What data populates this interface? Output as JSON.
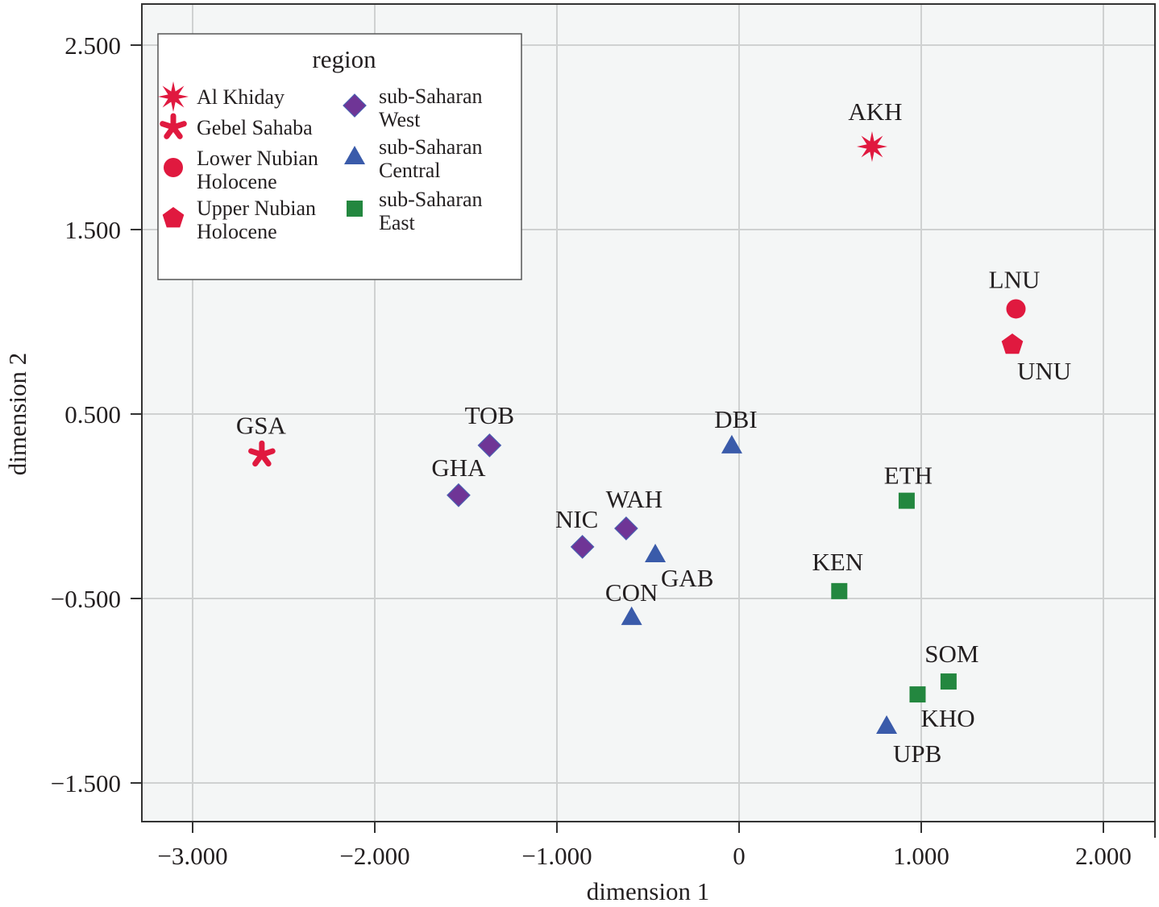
{
  "chart_data": {
    "type": "scatter",
    "title": "",
    "xlabel": "dimension 1",
    "ylabel": "dimension 2",
    "xlim": [
      -3.28,
      2.27
    ],
    "ylim": [
      -1.72,
      2.72
    ],
    "xticks": [
      -3,
      -2,
      -1,
      0,
      1,
      2
    ],
    "xtick_labels": [
      "−3.000",
      "−2.000",
      "−1.000",
      "0",
      "1.000",
      "2.000"
    ],
    "yticks": [
      -1.5,
      -0.5,
      0.5,
      1.5,
      2.5
    ],
    "ytick_labels": [
      "−1.500",
      "−0.500",
      "0.500",
      "1.500",
      "2.500"
    ],
    "grid": true,
    "legend": {
      "title": "region",
      "placement": "top-left",
      "entries": [
        {
          "key": "al_khiday",
          "lines": [
            "Al Khiday"
          ],
          "marker": "star8",
          "color": "#e0193f"
        },
        {
          "key": "gebel_sahaba",
          "lines": [
            "Gebel Sahaba"
          ],
          "marker": "asterisk",
          "color": "#e0193f"
        },
        {
          "key": "lower_nubian",
          "lines": [
            "Lower Nubian",
            "Holocene"
          ],
          "marker": "circle",
          "color": "#e0193f"
        },
        {
          "key": "upper_nubian",
          "lines": [
            "Upper Nubian",
            "Holocene"
          ],
          "marker": "pentagon",
          "color": "#e0193f"
        },
        {
          "key": "ss_west",
          "lines": [
            "sub-Saharan",
            "West"
          ],
          "marker": "diamond",
          "color": "#6f3596"
        },
        {
          "key": "ss_central",
          "lines": [
            "sub-Saharan",
            "Central"
          ],
          "marker": "triangle",
          "color": "#3a5baa"
        },
        {
          "key": "ss_east",
          "lines": [
            "sub-Saharan",
            "East"
          ],
          "marker": "square",
          "color": "#23873f"
        }
      ]
    },
    "points": [
      {
        "label": "AKH",
        "region": "al_khiday",
        "x": 0.73,
        "y": 1.95,
        "label_pos": "above"
      },
      {
        "label": "GSA",
        "region": "gebel_sahaba",
        "x": -2.62,
        "y": 0.28,
        "label_pos": "above"
      },
      {
        "label": "LNU",
        "region": "lower_nubian",
        "x": 1.52,
        "y": 1.07,
        "label_pos": "above"
      },
      {
        "label": "UNU",
        "region": "upper_nubian",
        "x": 1.5,
        "y": 0.88,
        "label_pos": "below-right"
      },
      {
        "label": "TOB",
        "region": "ss_west",
        "x": -1.37,
        "y": 0.33,
        "label_pos": "above"
      },
      {
        "label": "GHA",
        "region": "ss_west",
        "x": -1.54,
        "y": 0.06,
        "label_pos": "above"
      },
      {
        "label": "NIC",
        "region": "ss_west",
        "x": -0.86,
        "y": -0.22,
        "label_pos": "above-left"
      },
      {
        "label": "WAH",
        "region": "ss_west",
        "x": -0.62,
        "y": -0.12,
        "label_pos": "above-right"
      },
      {
        "label": "DBI",
        "region": "ss_central",
        "x": -0.04,
        "y": 0.33,
        "label_pos": "above-right"
      },
      {
        "label": "GAB",
        "region": "ss_central",
        "x": -0.46,
        "y": -0.26,
        "label_pos": "below-right"
      },
      {
        "label": "CON",
        "region": "ss_central",
        "x": -0.59,
        "y": -0.6,
        "label_pos": "above"
      },
      {
        "label": "UPB",
        "region": "ss_central",
        "x": 0.81,
        "y": -1.19,
        "label_pos": "below-right"
      },
      {
        "label": "ETH",
        "region": "ss_east",
        "x": 0.92,
        "y": 0.03,
        "label_pos": "above"
      },
      {
        "label": "KEN",
        "region": "ss_east",
        "x": 0.55,
        "y": -0.46,
        "label_pos": "above"
      },
      {
        "label": "SOM",
        "region": "ss_east",
        "x": 1.15,
        "y": -0.95,
        "label_pos": "above-right"
      },
      {
        "label": "KHO",
        "region": "ss_east",
        "x": 0.98,
        "y": -1.02,
        "label_pos": "below-right"
      }
    ]
  }
}
